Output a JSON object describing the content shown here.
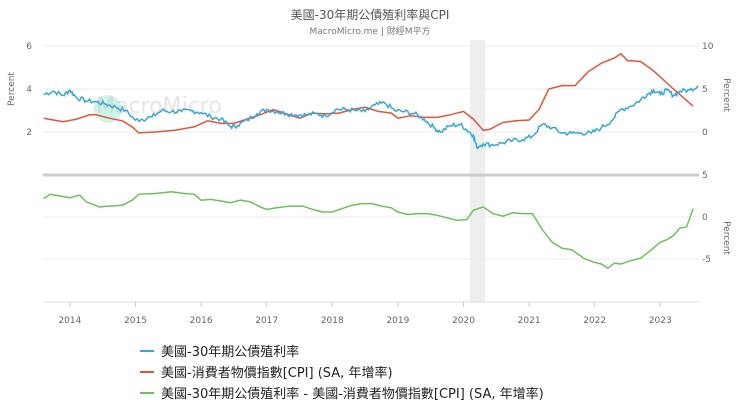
{
  "header": {
    "title": "美國-30年期公債殖利率與CPI",
    "subtitle": "MacroMicro.me | 財經M平方"
  },
  "watermark": "MacroMicro",
  "colors": {
    "yield": "#3aa6d6",
    "cpi": "#e0553a",
    "diff": "#6cc05a",
    "grid": "#ececec",
    "separator": "#cccccc",
    "shade": "#eeeeee"
  },
  "legend": [
    {
      "label": "美國-30年期公債殖利率",
      "color": "#3aa6d6"
    },
    {
      "label": "美國-消費者物價指數[CPI] (SA, 年增率)",
      "color": "#e0553a"
    },
    {
      "label": "美國-30年期公債殖利率 - 美國-消費者物價指數[CPI] (SA, 年增率)",
      "color": "#6cc05a"
    }
  ],
  "chart_data": [
    {
      "type": "line",
      "title": "美國-30年期公債殖利率與CPI",
      "panel": "upper",
      "x_range": [
        2013.59,
        2023.59
      ],
      "xticks": [
        "2014",
        "2015",
        "2016",
        "2017",
        "2018",
        "2019",
        "2020",
        "2021",
        "2022",
        "2023"
      ],
      "left_axis": {
        "label": "Percent",
        "ticks": [
          2,
          4,
          6
        ],
        "range": [
          0.9,
          6.2
        ]
      },
      "right_axis": {
        "label": "Percent",
        "ticks": [
          0,
          5,
          10
        ],
        "range": [
          -4,
          11
        ]
      },
      "shaded_period": [
        2020.1,
        2020.33
      ],
      "series": [
        {
          "name": "美國-30年期公債殖利率",
          "axis": "left",
          "x": [
            2013.6,
            2013.75,
            2013.9,
            2014.0,
            2014.1,
            2014.25,
            2014.4,
            2014.55,
            2014.7,
            2014.85,
            2015.0,
            2015.1,
            2015.25,
            2015.4,
            2015.55,
            2015.7,
            2015.85,
            2016.0,
            2016.15,
            2016.3,
            2016.45,
            2016.55,
            2016.7,
            2016.85,
            2017.0,
            2017.15,
            2017.3,
            2017.45,
            2017.6,
            2017.75,
            2017.9,
            2018.05,
            2018.2,
            2018.35,
            2018.5,
            2018.65,
            2018.8,
            2018.95,
            2019.1,
            2019.25,
            2019.4,
            2019.55,
            2019.65,
            2019.8,
            2019.95,
            2020.05,
            2020.15,
            2020.2,
            2020.3,
            2020.45,
            2020.6,
            2020.75,
            2020.9,
            2021.05,
            2021.2,
            2021.35,
            2021.5,
            2021.65,
            2021.8,
            2021.95,
            2022.1,
            2022.25,
            2022.4,
            2022.55,
            2022.7,
            2022.8,
            2022.9,
            2023.0,
            2023.1,
            2023.2,
            2023.3,
            2023.45,
            2023.58
          ],
          "values": [
            3.75,
            3.9,
            3.7,
            3.95,
            3.6,
            3.45,
            3.4,
            3.3,
            3.15,
            3.0,
            2.55,
            2.6,
            2.7,
            3.0,
            2.95,
            2.95,
            3.0,
            2.9,
            2.7,
            2.6,
            2.25,
            2.3,
            2.55,
            2.85,
            3.05,
            2.95,
            2.85,
            2.8,
            2.8,
            2.85,
            2.75,
            3.05,
            3.05,
            3.0,
            2.95,
            3.25,
            3.35,
            3.0,
            2.95,
            2.85,
            2.6,
            2.2,
            2.0,
            2.3,
            2.35,
            2.1,
            1.85,
            1.3,
            1.45,
            1.4,
            1.5,
            1.6,
            1.65,
            1.8,
            2.35,
            2.2,
            1.95,
            1.95,
            1.95,
            1.95,
            2.2,
            2.5,
            3.05,
            3.2,
            3.5,
            3.75,
            3.95,
            3.75,
            3.95,
            3.7,
            3.9,
            3.95,
            4.15
          ]
        },
        {
          "name": "美國-消費者物價指數[CPI] (SA, 年增率)",
          "axis": "right",
          "x": [
            2013.6,
            2013.9,
            2014.1,
            2014.3,
            2014.4,
            2014.6,
            2014.8,
            2014.95,
            2015.05,
            2015.3,
            2015.6,
            2015.9,
            2016.1,
            2016.3,
            2016.5,
            2016.7,
            2016.9,
            2017.1,
            2017.3,
            2017.5,
            2017.7,
            2017.9,
            2018.1,
            2018.3,
            2018.5,
            2018.7,
            2018.9,
            2019.0,
            2019.2,
            2019.4,
            2019.6,
            2019.8,
            2020.0,
            2020.15,
            2020.3,
            2020.4,
            2020.6,
            2020.8,
            2021.0,
            2021.15,
            2021.3,
            2021.5,
            2021.7,
            2021.9,
            2022.1,
            2022.3,
            2022.4,
            2022.5,
            2022.7,
            2022.9,
            2023.0,
            2023.2,
            2023.35,
            2023.5
          ],
          "values": [
            1.6,
            1.2,
            1.5,
            2.0,
            2.0,
            1.6,
            1.3,
            0.6,
            -0.1,
            0.0,
            0.2,
            0.6,
            1.3,
            1.0,
            1.0,
            1.5,
            2.0,
            2.6,
            2.1,
            1.6,
            2.2,
            2.1,
            2.2,
            2.6,
            2.9,
            2.4,
            2.2,
            1.6,
            1.9,
            1.7,
            1.7,
            2.0,
            2.4,
            1.5,
            0.2,
            0.3,
            1.1,
            1.3,
            1.4,
            2.6,
            5.0,
            5.4,
            5.4,
            7.0,
            8.0,
            8.6,
            9.1,
            8.3,
            8.2,
            7.1,
            6.4,
            5.0,
            4.0,
            3.0
          ]
        }
      ]
    },
    {
      "type": "line",
      "panel": "lower",
      "x_range": [
        2013.59,
        2023.59
      ],
      "right_axis": {
        "label": "Percent",
        "ticks": [
          -5,
          0,
          5
        ],
        "range": [
          -10,
          5
        ]
      },
      "shaded_period": [
        2020.1,
        2020.33
      ],
      "series": [
        {
          "name": "美國-30年期公債殖利率 - 美國-消費者物價指數[CPI] (SA, 年增率)",
          "x": [
            2013.6,
            2013.7,
            2013.85,
            2014.0,
            2014.15,
            2014.25,
            2014.45,
            2014.6,
            2014.8,
            2014.95,
            2015.05,
            2015.3,
            2015.55,
            2015.75,
            2015.9,
            2016.0,
            2016.15,
            2016.3,
            2016.45,
            2016.6,
            2016.75,
            2016.9,
            2017.0,
            2017.15,
            2017.35,
            2017.55,
            2017.7,
            2017.85,
            2018.0,
            2018.15,
            2018.3,
            2018.45,
            2018.6,
            2018.75,
            2018.9,
            2019.0,
            2019.15,
            2019.3,
            2019.45,
            2019.6,
            2019.75,
            2019.9,
            2020.05,
            2020.15,
            2020.3,
            2020.45,
            2020.6,
            2020.75,
            2020.9,
            2021.05,
            2021.2,
            2021.35,
            2021.5,
            2021.65,
            2021.85,
            2022.0,
            2022.1,
            2022.2,
            2022.3,
            2022.4,
            2022.55,
            2022.7,
            2022.85,
            2023.0,
            2023.1,
            2023.2,
            2023.3,
            2023.4,
            2023.5
          ],
          "values": [
            2.2,
            2.7,
            2.5,
            2.3,
            2.6,
            1.8,
            1.2,
            1.3,
            1.4,
            2.0,
            2.7,
            2.8,
            3.0,
            2.8,
            2.7,
            2.0,
            2.1,
            1.9,
            1.7,
            2.0,
            1.8,
            1.2,
            0.9,
            1.1,
            1.3,
            1.3,
            0.9,
            0.6,
            0.6,
            1.0,
            1.4,
            1.6,
            1.6,
            1.3,
            1.1,
            0.6,
            0.3,
            0.4,
            0.4,
            0.2,
            -0.1,
            -0.4,
            -0.3,
            0.8,
            1.2,
            0.4,
            0.1,
            0.5,
            0.4,
            0.4,
            -1.5,
            -3.0,
            -3.7,
            -3.9,
            -5.0,
            -5.4,
            -5.6,
            -6.1,
            -5.5,
            -5.6,
            -5.2,
            -4.9,
            -4.0,
            -3.0,
            -2.7,
            -2.2,
            -1.3,
            -1.2,
            1.0
          ]
        }
      ]
    }
  ]
}
